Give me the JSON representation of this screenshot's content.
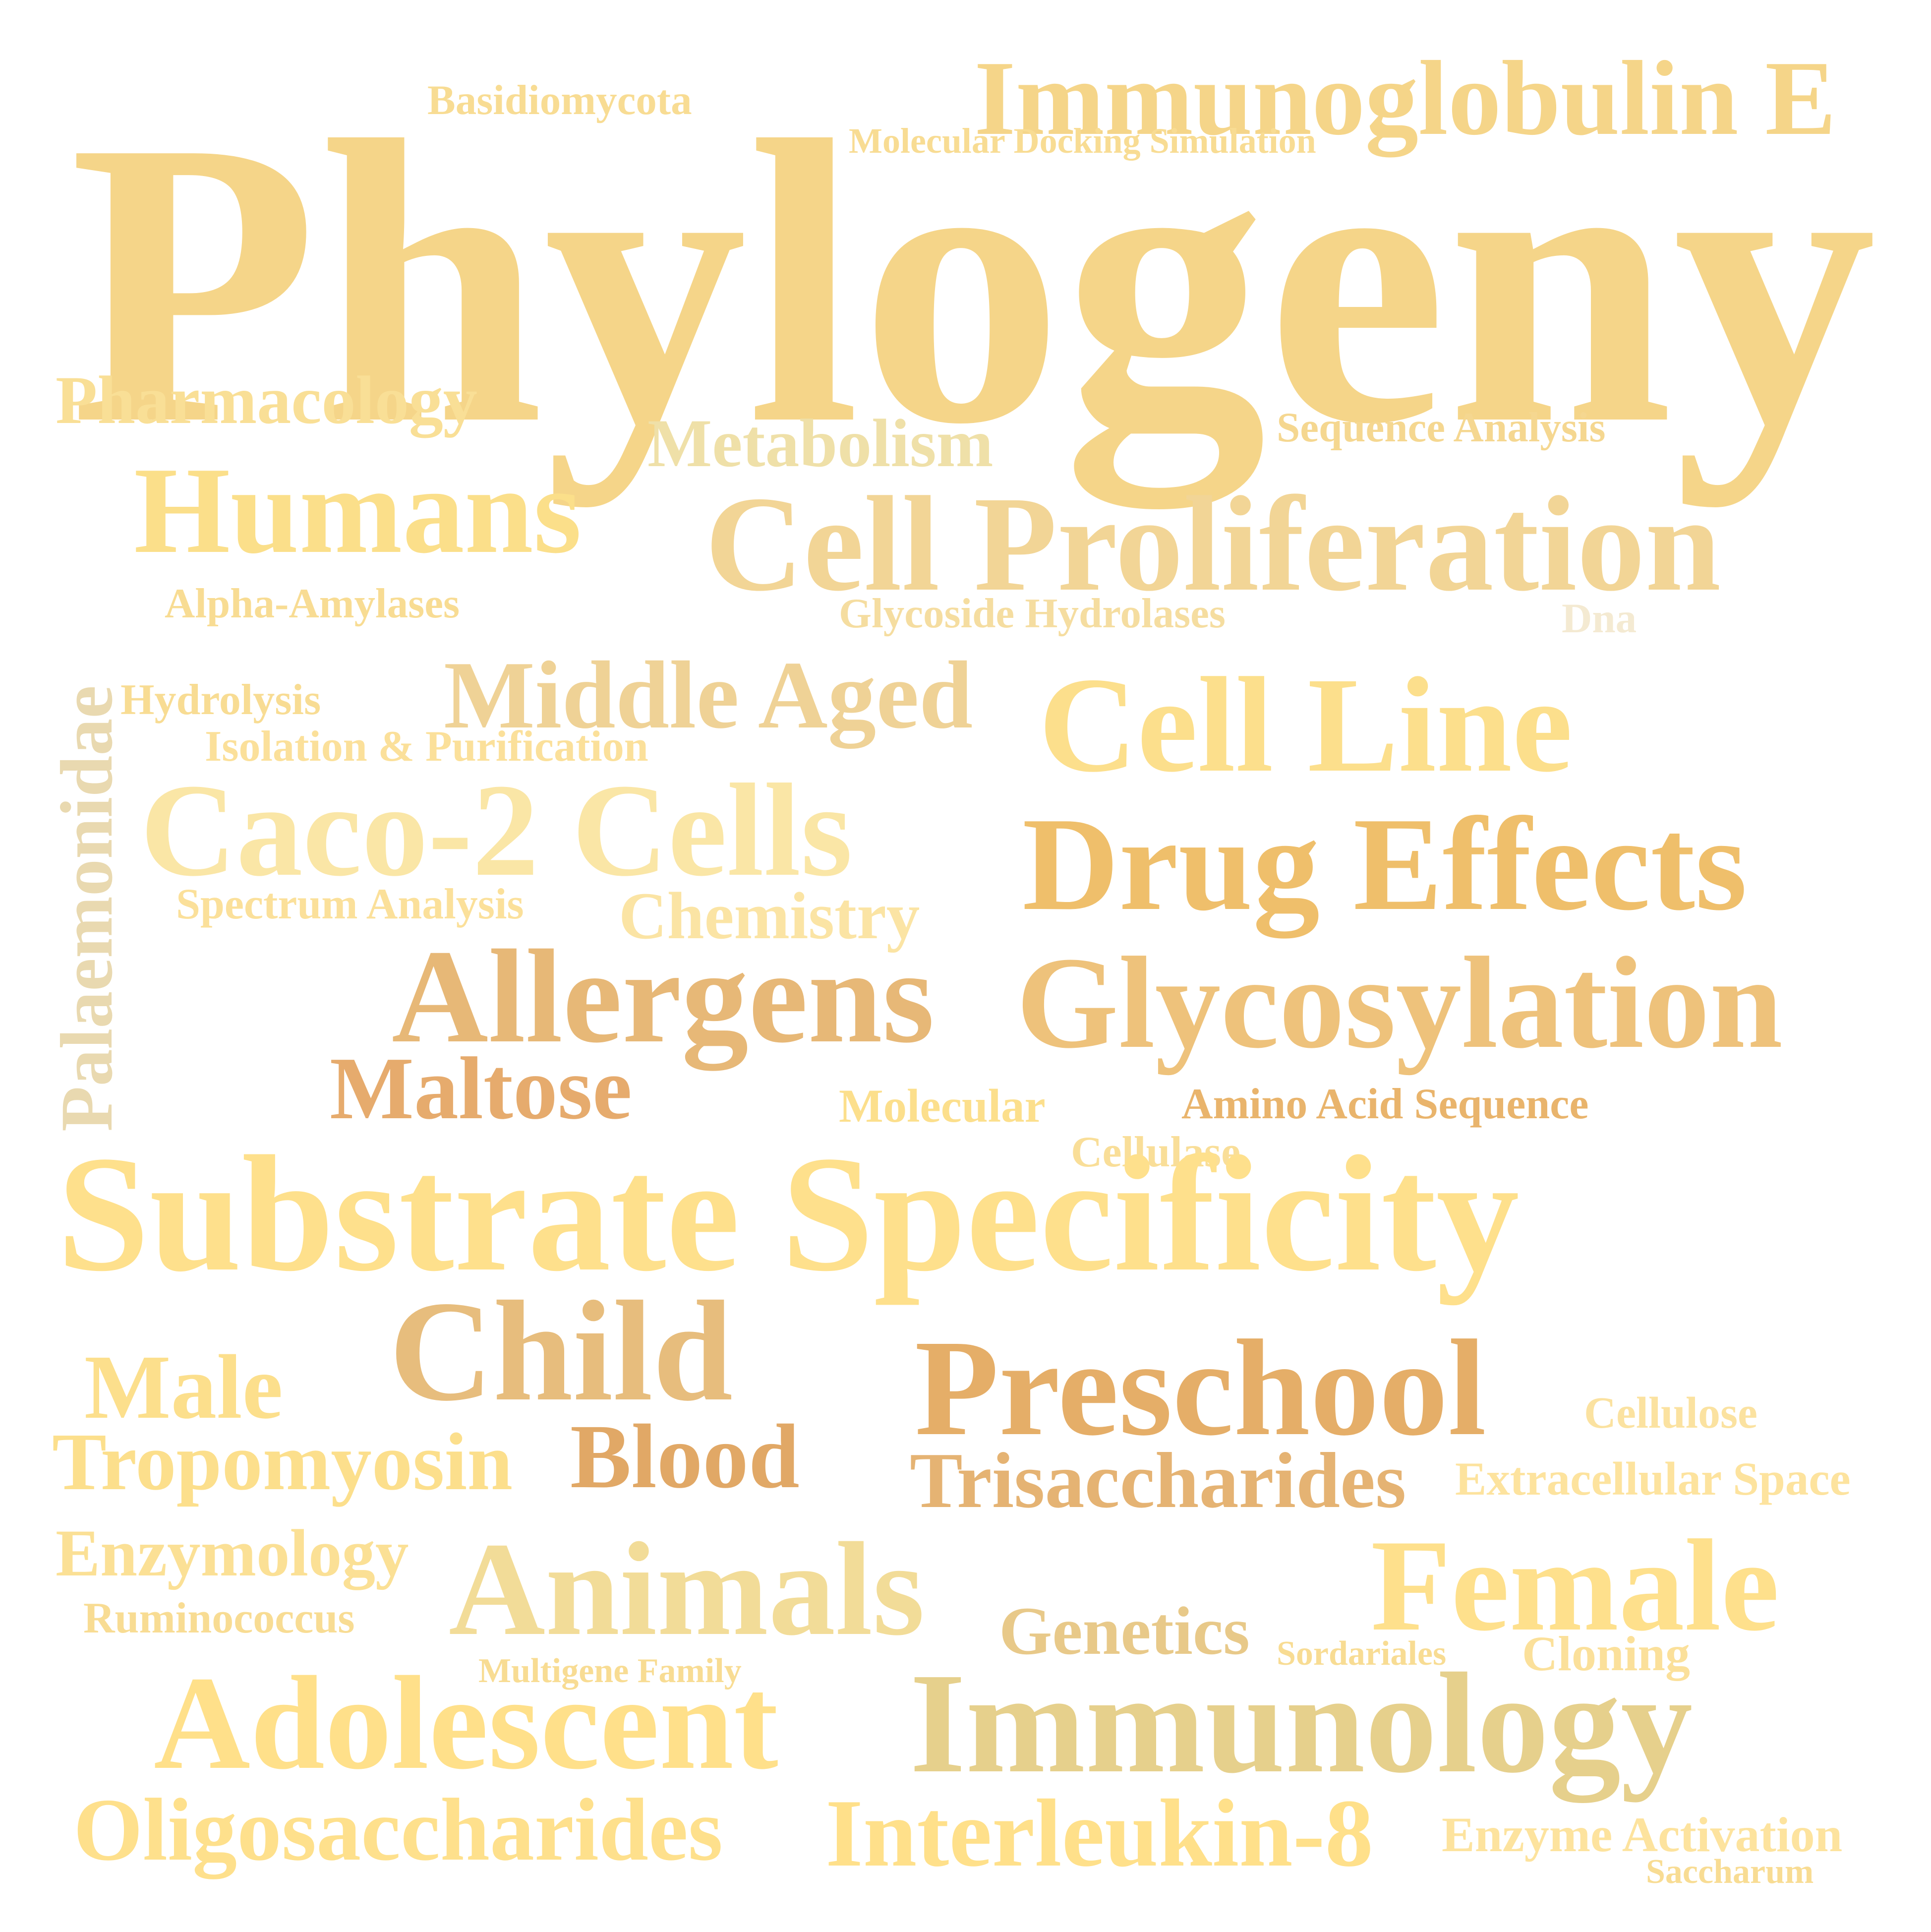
{
  "words": [
    {
      "text": "Phylogeny",
      "color": "#f5d589"
    },
    {
      "text": "Immunoglobulin E",
      "color": "#f5d589"
    },
    {
      "text": "Basidiomycota",
      "color": "#f8dc93"
    },
    {
      "text": "Molecular Docking Simulation",
      "color": "#f8dc93"
    },
    {
      "text": "Pharmacology",
      "color": "#f9df96"
    },
    {
      "text": "Metabolism",
      "color": "#efe0a8"
    },
    {
      "text": "Sequence Analysis",
      "color": "#f5d790"
    },
    {
      "text": "Humans",
      "color": "#fbdf8a"
    },
    {
      "text": "Cell Proliferation",
      "color": "#f2d596"
    },
    {
      "text": "Alpha-Amylases",
      "color": "#f8dc93"
    },
    {
      "text": "Glycoside Hydrolases",
      "color": "#f5dda0"
    },
    {
      "text": "Dna",
      "color": "#f4ead2"
    },
    {
      "text": "Palaemonidae",
      "color": "#e9d9b0"
    },
    {
      "text": "Hydrolysis",
      "color": "#f8dc93"
    },
    {
      "text": "Middle Aged",
      "color": "#efd296"
    },
    {
      "text": "Cell Line",
      "color": "#fcdf8c"
    },
    {
      "text": "Isolation & Purification",
      "color": "#fbe09a"
    },
    {
      "text": "Caco-2 Cells",
      "color": "#fae6a6"
    },
    {
      "text": "Drug Effects",
      "color": "#efbf6b"
    },
    {
      "text": "Spectrum Analysis",
      "color": "#fbe09a"
    },
    {
      "text": "Chemistry",
      "color": "#fbe4a4"
    },
    {
      "text": "Allergens",
      "color": "#e7b877"
    },
    {
      "text": "Glycosylation",
      "color": "#eec27b"
    },
    {
      "text": "Maltose",
      "color": "#e6ab6d"
    },
    {
      "text": "Molecular",
      "color": "#fcdf8c"
    },
    {
      "text": "Amino Acid Sequence",
      "color": "#e9b46c"
    },
    {
      "text": "Cellulase",
      "color": "#f9de98"
    },
    {
      "text": "Substrate Specificity",
      "color": "#fee08c"
    },
    {
      "text": "Child",
      "color": "#e7bd7d"
    },
    {
      "text": "Male",
      "color": "#fcdf8c"
    },
    {
      "text": "Preschool",
      "color": "#e5ae68"
    },
    {
      "text": "Cellulose",
      "color": "#fbe2a0"
    },
    {
      "text": "Tropomyosin",
      "color": "#fcdf8c"
    },
    {
      "text": "Blood",
      "color": "#e1a866"
    },
    {
      "text": "Trisaccharides",
      "color": "#e5b373"
    },
    {
      "text": "Extracellular Space",
      "color": "#fde39e"
    },
    {
      "text": "Enzymology",
      "color": "#fbe095"
    },
    {
      "text": "Animals",
      "color": "#f2dc98"
    },
    {
      "text": "Female",
      "color": "#fee08c"
    },
    {
      "text": "Ruminococcus",
      "color": "#f8dc93"
    },
    {
      "text": "Genetics",
      "color": "#e8c989"
    },
    {
      "text": "Sordariales",
      "color": "#f8dc93"
    },
    {
      "text": "Cloning",
      "color": "#fbe09a"
    },
    {
      "text": "Multigene Family",
      "color": "#f8dc93"
    },
    {
      "text": "Adolescent",
      "color": "#ffe08a"
    },
    {
      "text": "Immunology",
      "color": "#e6d08c"
    },
    {
      "text": "Oligosaccharides",
      "color": "#fee08c"
    },
    {
      "text": "Interleukin-8",
      "color": "#ffe08a"
    },
    {
      "text": "Enzyme Activation",
      "color": "#fde39e"
    },
    {
      "text": "Saccharum",
      "color": "#f8dc93"
    }
  ]
}
